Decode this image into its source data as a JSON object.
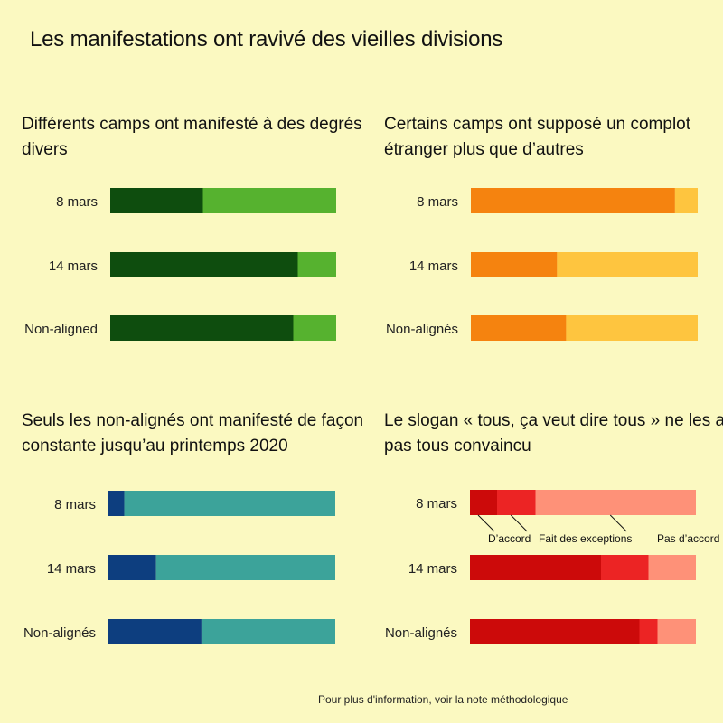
{
  "title": "Les manifestations ont ravivé des vieilles divisions",
  "footer": "Pour plus d'information, voir la note méthodologique",
  "chart_data": [
    {
      "type": "bar",
      "orientation": "horizontal",
      "stacked": true,
      "title": "Différents camps ont manifesté à des degrés divers",
      "categories": [
        "8 mars",
        "14 mars",
        "Non-aligned"
      ],
      "colors": [
        "#0e4d0e",
        "#56b22f"
      ],
      "series": [
        {
          "values": [
            41,
            83,
            81
          ]
        },
        {
          "values": [
            59,
            17,
            19
          ]
        }
      ]
    },
    {
      "type": "bar",
      "orientation": "horizontal",
      "stacked": true,
      "title": "Certains camps ont supposé un complot étranger plus que d’autres",
      "categories": [
        "8 mars",
        "14 mars",
        "Non-alignés"
      ],
      "colors": [
        "#f5830f",
        "#fec53f"
      ],
      "series": [
        {
          "values": [
            90,
            38,
            42
          ]
        },
        {
          "values": [
            10,
            62,
            58
          ]
        }
      ]
    },
    {
      "type": "bar",
      "orientation": "horizontal",
      "stacked": true,
      "title": "Seuls les non-alignés ont manifesté de façon constante jusqu’au printemps 2020",
      "categories": [
        "8 mars",
        "14 mars",
        "Non-alignés"
      ],
      "colors": [
        "#0d3e7f",
        "#3ca39a"
      ],
      "series": [
        {
          "values": [
            7,
            21,
            41
          ]
        },
        {
          "values": [
            93,
            79,
            59
          ]
        }
      ]
    },
    {
      "type": "bar",
      "orientation": "horizontal",
      "stacked": true,
      "title": "Le slogan « tous, ça veut dire tous » ne les a pas tous convaincu",
      "categories": [
        "8 mars",
        "14 mars",
        "Non-alignés"
      ],
      "colors": [
        "#cc0a0a",
        "#ec2424",
        "#fe9178"
      ],
      "series": [
        {
          "name": "D’accord",
          "values": [
            12,
            58,
            75
          ]
        },
        {
          "name": "Fait des exceptions",
          "values": [
            17,
            21,
            8
          ]
        },
        {
          "name": "Pas d’accord",
          "values": [
            71,
            21,
            17
          ]
        }
      ],
      "annotations": [
        "D’accord",
        "Fait des exceptions",
        "Pas d’accord"
      ]
    }
  ]
}
